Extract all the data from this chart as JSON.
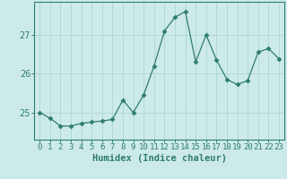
{
  "x": [
    0,
    1,
    2,
    3,
    4,
    5,
    6,
    7,
    8,
    9,
    10,
    11,
    12,
    13,
    14,
    15,
    16,
    17,
    18,
    19,
    20,
    21,
    22,
    23
  ],
  "y": [
    25.0,
    24.85,
    24.65,
    24.65,
    24.72,
    24.75,
    24.78,
    24.82,
    25.32,
    25.0,
    25.45,
    26.2,
    27.1,
    27.45,
    27.6,
    26.3,
    27.0,
    26.35,
    25.85,
    25.72,
    25.82,
    26.55,
    26.65,
    26.38
  ],
  "line_color": "#2e7d6e",
  "marker": "D",
  "marker_size": 2.5,
  "background_color": "#cdeaea",
  "grid_color": "#b0d8d8",
  "xlabel": "Humidex (Indice chaleur)",
  "yticks": [
    25,
    26,
    27
  ],
  "ylim": [
    24.3,
    27.85
  ],
  "xlim": [
    -0.5,
    23.5
  ],
  "xlabel_fontsize": 7.5,
  "tick_fontsize": 7
}
